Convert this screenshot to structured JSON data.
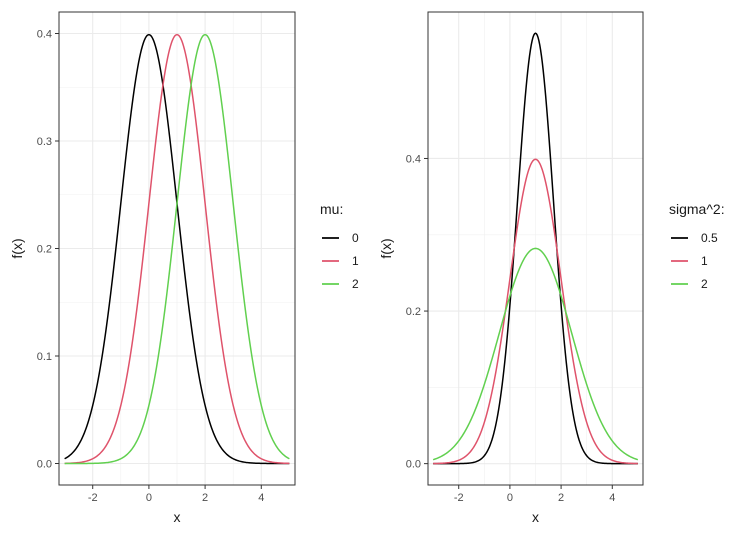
{
  "chart_data": [
    {
      "type": "line",
      "xlabel": "x",
      "ylabel": "f(x)",
      "xlim": [
        -3.2,
        5.2
      ],
      "ylim": [
        -0.02,
        0.42
      ],
      "xticks": [
        -2,
        0,
        2,
        4
      ],
      "xtick_labels": [
        "-2",
        "0",
        "2",
        "4"
      ],
      "yticks": [
        0.0,
        0.1,
        0.2,
        0.3,
        0.4
      ],
      "ytick_labels": [
        "0.0",
        "0.1",
        "0.2",
        "0.3",
        "0.4"
      ],
      "grid": true,
      "legend": {
        "title": "mu:",
        "placement": "right"
      },
      "x_range": [
        -3,
        5
      ],
      "series": [
        {
          "name": "0",
          "mu": 0,
          "sigma2": 1,
          "color": "#000000"
        },
        {
          "name": "1",
          "mu": 1,
          "sigma2": 1,
          "color": "#DF536B"
        },
        {
          "name": "2",
          "mu": 2,
          "sigma2": 1,
          "color": "#61D04F"
        }
      ]
    },
    {
      "type": "line",
      "xlabel": "x",
      "ylabel": "f(x)",
      "xlim": [
        -3.2,
        5.2
      ],
      "ylim": [
        -0.028,
        0.592
      ],
      "xticks": [
        -2,
        0,
        2,
        4
      ],
      "xtick_labels": [
        "-2",
        "0",
        "2",
        "4"
      ],
      "yticks": [
        0.0,
        0.2,
        0.4
      ],
      "ytick_labels": [
        "0.0",
        "0.2",
        "0.4"
      ],
      "grid": true,
      "legend": {
        "title": "sigma^2:",
        "placement": "right"
      },
      "x_range": [
        -3,
        5
      ],
      "series": [
        {
          "name": "0.5",
          "mu": 1,
          "sigma2": 0.5,
          "color": "#000000"
        },
        {
          "name": "1",
          "mu": 1,
          "sigma2": 1,
          "color": "#DF536B"
        },
        {
          "name": "2",
          "mu": 1,
          "sigma2": 2,
          "color": "#61D04F"
        }
      ]
    }
  ]
}
